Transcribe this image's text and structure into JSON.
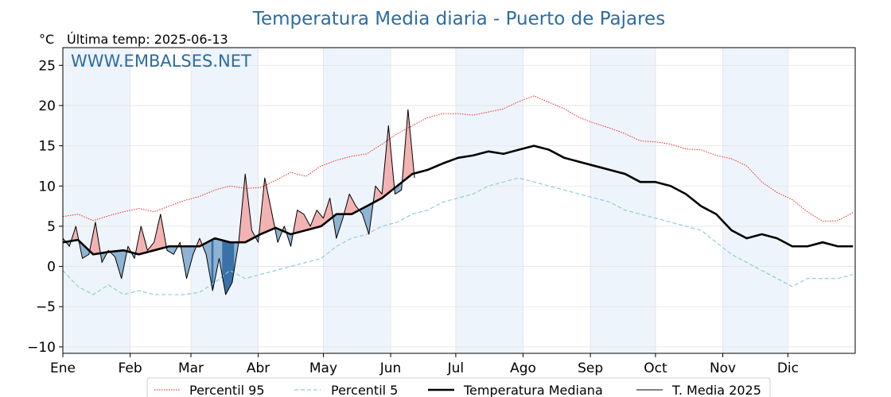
{
  "chart_data": {
    "type": "line",
    "title": "Temperatura Media diaria - Puerto de Pajares",
    "unit_label": "°C",
    "last_update_label": "Última temp: 2025-06-13",
    "watermark": "WWW.EMBALSES.NET",
    "months": [
      "Ene",
      "Feb",
      "Mar",
      "Abr",
      "May",
      "Jun",
      "Jul",
      "Ago",
      "Sep",
      "Oct",
      "Nov",
      "Dic"
    ],
    "month_start_days": [
      1,
      32,
      60,
      91,
      121,
      152,
      182,
      213,
      244,
      274,
      305,
      335
    ],
    "x_range_days": [
      1,
      366
    ],
    "ylim": [
      -10.8,
      27.2
    ],
    "yticks": [
      25,
      20,
      15,
      10,
      5,
      0,
      -5,
      -10
    ],
    "ytick_labels": [
      "25",
      "20",
      "15",
      "10",
      "5",
      "0",
      "−5",
      "−10"
    ],
    "grid": true,
    "legend_position": "bottom",
    "colors": {
      "p95": "#ee1111",
      "p5": "#8ecbe0",
      "median": "#000000",
      "current": "#000000",
      "above_fill": "#f3b3b3",
      "below_fill": "#8fb3d3",
      "below_deep_fill": "#3a72a8",
      "shade_band": "#eef4fb",
      "title": "#2b6ca3"
    },
    "series": [
      {
        "key": "p95",
        "name": "Percentil 95",
        "style": "dotted",
        "x": [
          1,
          8,
          15,
          22,
          29,
          36,
          43,
          50,
          57,
          64,
          71,
          78,
          85,
          92,
          99,
          106,
          113,
          120,
          127,
          134,
          141,
          148,
          155,
          162,
          169,
          176,
          183,
          190,
          197,
          204,
          211,
          218,
          225,
          232,
          239,
          246,
          253,
          260,
          267,
          274,
          281,
          288,
          295,
          302,
          309,
          316,
          323,
          330,
          337,
          344,
          351,
          358,
          365
        ],
        "y": [
          6.2,
          6.5,
          5.7,
          6.3,
          6.8,
          7.2,
          6.8,
          7.5,
          8.2,
          8.7,
          9.5,
          10,
          9.7,
          9.8,
          10.7,
          11.7,
          11.2,
          12.5,
          13.2,
          13.7,
          14,
          15.2,
          16.5,
          17.5,
          18.5,
          19,
          19,
          18.8,
          19.2,
          19.6,
          20.5,
          21.2,
          20.4,
          19.6,
          18.5,
          17.8,
          17.2,
          16.5,
          15.6,
          15.5,
          15.2,
          14.6,
          14.5,
          13.8,
          13.4,
          12.5,
          10.5,
          9.2,
          8.3,
          6.8,
          5.6,
          5.7,
          6.7
        ]
      },
      {
        "key": "p5",
        "name": "Percentil 5",
        "style": "dashed",
        "x": [
          1,
          8,
          15,
          22,
          29,
          36,
          43,
          50,
          57,
          64,
          71,
          78,
          85,
          92,
          99,
          106,
          113,
          120,
          127,
          134,
          141,
          148,
          155,
          162,
          169,
          176,
          183,
          190,
          197,
          204,
          211,
          218,
          225,
          232,
          239,
          246,
          253,
          260,
          267,
          274,
          281,
          288,
          295,
          302,
          309,
          316,
          323,
          330,
          337,
          344,
          351,
          358,
          365
        ],
        "y": [
          -0.5,
          -2.5,
          -3.5,
          -2.3,
          -3.5,
          -3,
          -3.5,
          -3.5,
          -3.5,
          -3.2,
          -2,
          -0.5,
          -1.5,
          -1,
          -0.5,
          0,
          0.5,
          1,
          2.5,
          3.5,
          4,
          5,
          5.5,
          6.5,
          7,
          8,
          8.5,
          9,
          10,
          10.5,
          11,
          10.5,
          10,
          9.5,
          9,
          8.5,
          8,
          7,
          6.5,
          6,
          5.5,
          5,
          4.5,
          3,
          1.5,
          0.5,
          -0.5,
          -1.5,
          -2.5,
          -1.5,
          -1.5,
          -1.5,
          -1
        ]
      },
      {
        "key": "median",
        "name": "Temperatura Mediana",
        "style": "solid-thick",
        "x": [
          1,
          8,
          15,
          22,
          29,
          36,
          43,
          50,
          57,
          64,
          71,
          78,
          85,
          92,
          99,
          106,
          113,
          120,
          127,
          134,
          141,
          148,
          155,
          162,
          169,
          176,
          183,
          190,
          197,
          204,
          211,
          218,
          225,
          232,
          239,
          246,
          253,
          260,
          267,
          274,
          281,
          288,
          295,
          302,
          309,
          316,
          323,
          330,
          337,
          344,
          351,
          358,
          365
        ],
        "y": [
          3,
          3.3,
          1.5,
          1.8,
          2,
          1.5,
          2,
          2.5,
          2.5,
          2.5,
          3.5,
          3,
          3,
          4,
          4.8,
          4,
          4.5,
          5,
          6.5,
          6.5,
          7.5,
          8.5,
          10,
          11.5,
          12,
          12.8,
          13.5,
          13.8,
          14.3,
          14,
          14.5,
          15,
          14.5,
          13.5,
          13,
          12.5,
          12,
          11.5,
          10.5,
          10.5,
          10,
          9,
          7.5,
          6.5,
          4.5,
          3.5,
          4,
          3.5,
          2.5,
          2.5,
          3,
          2.5,
          2.5
        ]
      },
      {
        "key": "current",
        "name": "T. Media 2025",
        "style": "solid-thin",
        "x": [
          1,
          4,
          7,
          10,
          13,
          16,
          19,
          22,
          25,
          28,
          31,
          34,
          37,
          40,
          43,
          46,
          49,
          52,
          55,
          58,
          61,
          64,
          67,
          70,
          73,
          76,
          79,
          82,
          85,
          88,
          91,
          94,
          97,
          100,
          103,
          106,
          109,
          112,
          115,
          118,
          121,
          124,
          127,
          130,
          133,
          136,
          139,
          142,
          145,
          148,
          151,
          154,
          157,
          160,
          163
        ],
        "y": [
          3.5,
          2.5,
          5,
          1,
          1.5,
          5.5,
          0.5,
          2,
          1.2,
          -1.5,
          2.5,
          1,
          5,
          2,
          3,
          6.5,
          2,
          1.5,
          3,
          -1.5,
          1.5,
          3.5,
          1.5,
          -3,
          1,
          -3.5,
          -2,
          3,
          11.5,
          4.5,
          3,
          11,
          7,
          3,
          5,
          2.5,
          7,
          6.5,
          5,
          7,
          6,
          8.5,
          3.5,
          6,
          9,
          7.5,
          6.5,
          4,
          10,
          9,
          17.5,
          9,
          9.5,
          19.5,
          11
        ]
      }
    ],
    "legend": {
      "p95": "Percentil 95",
      "p5": "Percentil 5",
      "median": "Temperatura Mediana",
      "current": "T. Media 2025"
    }
  }
}
